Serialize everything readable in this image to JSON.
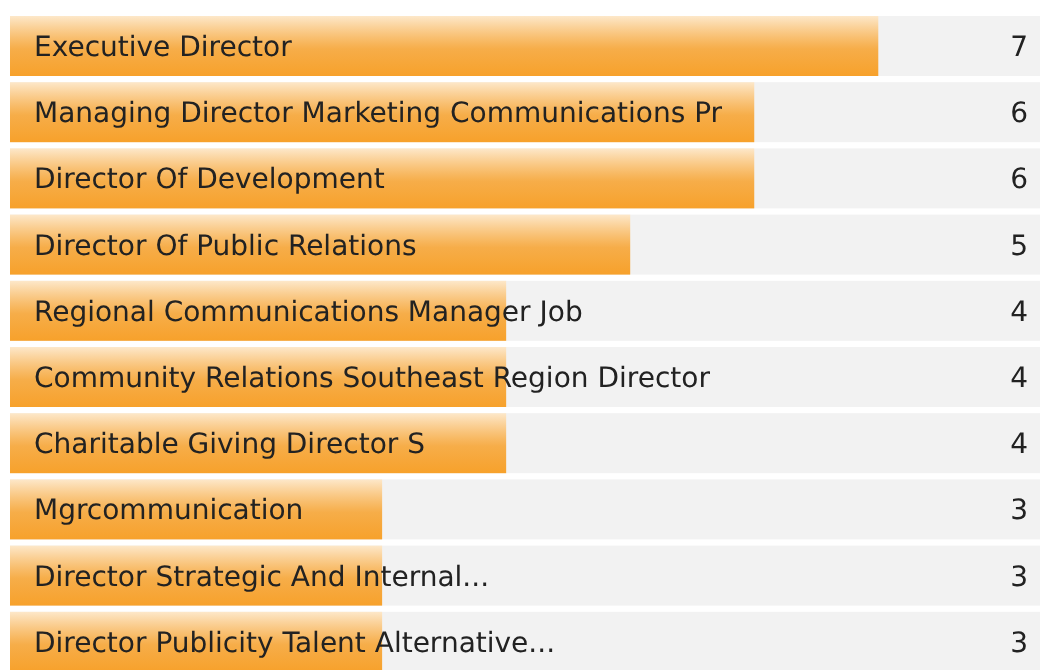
{
  "chart_data": {
    "type": "bar",
    "orientation": "horizontal",
    "categories": [
      "Executive Director",
      "Managing Director Marketing Communications Pr",
      "Director Of Development",
      "Director Of Public Relations",
      "Regional Communications Manager Job",
      "Community Relations Southeast Region Director",
      "Charitable Giving Director S",
      "Mgrcommunication",
      "Director Strategic And Internal...",
      "Director Publicity Talent Alternative..."
    ],
    "values": [
      7,
      6,
      6,
      5,
      4,
      4,
      4,
      3,
      3,
      3
    ],
    "color": "#f7a12b",
    "data_labels": true
  }
}
